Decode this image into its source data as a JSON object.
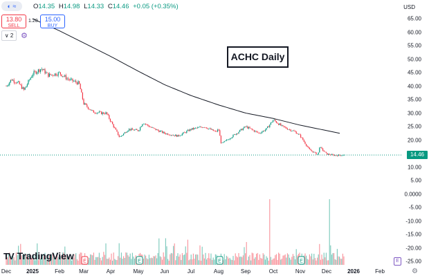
{
  "header": {
    "ohlc": [
      {
        "label": "O",
        "value": "14.35"
      },
      {
        "label": "H",
        "value": "14.98"
      },
      {
        "label": "L",
        "value": "14.33"
      },
      {
        "label": "C",
        "value": "14.46"
      }
    ],
    "change": "+0.05 (+0.35%)",
    "sell_price": "13.80",
    "sell_label": "SELL",
    "buy_price": "15.00",
    "buy_label": "BUY",
    "spread": "1.20",
    "indicator_count": "2",
    "currency": "USD"
  },
  "title": "ACHC Daily",
  "last_price": "14.46",
  "logo_text": "TradingView",
  "colors": {
    "up": "#089981",
    "down": "#f23645",
    "ma": "#131722",
    "last": "#089981"
  },
  "chart_data": {
    "type": "candlestick",
    "title": "ACHC Daily",
    "price_axis_ticks": [
      "65.00",
      "60.00",
      "55.00",
      "50.00",
      "45.00",
      "40.00",
      "35.00",
      "30.00",
      "25.00",
      "20.00",
      "15.00",
      "10.00",
      "5.00",
      "0.0000",
      "-5.00",
      "-10.00",
      "-15.00",
      "-20.00",
      "-25.00"
    ],
    "date_axis_ticks": [
      "Dec",
      "2025",
      "Feb",
      "Mar",
      "Apr",
      "May",
      "Jun",
      "Jul",
      "Aug",
      "Sep",
      "Oct",
      "Nov",
      "Dec",
      "2026",
      "Feb"
    ],
    "bold_date_ticks": [
      "2025",
      "2026"
    ],
    "ylim": [
      -27,
      68
    ],
    "price_keypoints": [
      [
        "Dec",
        40.0
      ],
      [
        "Dec+6d",
        42.5
      ],
      [
        "Dec+14d",
        41.0
      ],
      [
        "Dec+20d",
        38.5
      ],
      [
        "2025",
        44.5
      ],
      [
        "Jan+10d",
        46.5
      ],
      [
        "Jan+18d",
        44.0
      ],
      [
        "Feb",
        44.8
      ],
      [
        "Feb+10d",
        42.5
      ],
      [
        "Feb+22d",
        41.0
      ],
      [
        "Mar",
        33.5
      ],
      [
        "Mar+10d",
        30.5
      ],
      [
        "Mar+20d",
        30.0
      ],
      [
        "Apr-5d",
        30.0
      ],
      [
        "Apr",
        27.0
      ],
      [
        "Apr+10d",
        21.0
      ],
      [
        "Apr+20d",
        24.0
      ],
      [
        "May",
        23.5
      ],
      [
        "May+5d",
        26.5
      ],
      [
        "May+15d",
        24.5
      ],
      [
        "Jun",
        22.5
      ],
      [
        "Jun+15d",
        21.5
      ],
      [
        "Jul",
        24.0
      ],
      [
        "Jul+15d",
        25.0
      ],
      [
        "Jul+28d",
        23.0
      ],
      [
        "Aug",
        24.0
      ],
      [
        "Aug+3d",
        18.5
      ],
      [
        "Aug+20d",
        22.5
      ],
      [
        "Sep",
        25.0
      ],
      [
        "Sep+15d",
        22.5
      ],
      [
        "Oct-8d",
        24.0
      ],
      [
        "Oct",
        27.5
      ],
      [
        "Oct+10d",
        25.0
      ],
      [
        "Oct+25d",
        23.0
      ],
      [
        "Nov",
        21.5
      ],
      [
        "Nov+10d",
        16.5
      ],
      [
        "Nov+20d",
        14.5
      ],
      [
        "Dec-8d",
        17.5
      ],
      [
        "Dec",
        14.8
      ],
      [
        "Dec+10d",
        14.3
      ],
      [
        "Dec+20d",
        14.46
      ]
    ],
    "moving_average": [
      [
        "2025",
        65.0
      ],
      [
        "Feb",
        60.5
      ],
      [
        "Mar",
        56.0
      ],
      [
        "Apr",
        51.0
      ],
      [
        "May",
        45.5
      ],
      [
        "Jun",
        40.5
      ],
      [
        "Jul",
        36.5
      ],
      [
        "Aug",
        33.0
      ],
      [
        "Sep",
        30.0
      ],
      [
        "Oct",
        28.0
      ],
      [
        "Nov",
        25.5
      ],
      [
        "Dec+15d",
        22.5
      ]
    ],
    "earnings_markers": [
      "Mar",
      "May",
      "Aug",
      "Nov"
    ],
    "volume_spikes": [
      "Sep+27d",
      "Dec+3d"
    ]
  }
}
